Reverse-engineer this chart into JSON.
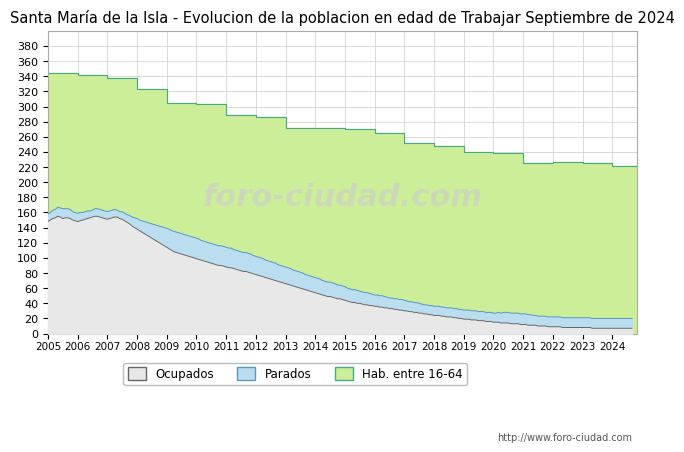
{
  "title": "Santa María de la Isla - Evolucion de la poblacion en edad de Trabajar Septiembre de 2024",
  "title_fontsize": 10.5,
  "url_text": "http://www.foro-ciudad.com",
  "watermark": "foro-ciudad.com",
  "hab_color": "#ccee99",
  "hab_edge_color": "#44aa88",
  "parados_color": "#bbddf0",
  "parados_edge_color": "#5599bb",
  "ocupados_color": "#e8e8e8",
  "ocupados_edge_color": "#666666",
  "background_color": "#ffffff",
  "grid_color": "#cccccc",
  "ylim": [
    0,
    400
  ],
  "yticks": [
    0,
    20,
    40,
    60,
    80,
    100,
    120,
    140,
    160,
    180,
    200,
    220,
    240,
    260,
    280,
    300,
    320,
    340,
    360,
    380
  ],
  "years": [
    2005,
    2006,
    2007,
    2008,
    2009,
    2010,
    2011,
    2012,
    2013,
    2014,
    2015,
    2016,
    2017,
    2018,
    2019,
    2020,
    2021,
    2022,
    2023,
    2024
  ],
  "hab_16_64": [
    344,
    341,
    338,
    323,
    304,
    303,
    289,
    286,
    271,
    271,
    270,
    265,
    252,
    248,
    240,
    238,
    225,
    227,
    225,
    222
  ],
  "afiliados_monthly": {
    "2005": [
      148,
      150,
      152,
      153,
      155,
      154,
      152,
      153,
      153,
      152,
      150,
      149
    ],
    "2006": [
      148,
      149,
      150,
      151,
      152,
      153,
      154,
      155,
      155,
      154,
      153,
      152
    ],
    "2007": [
      151,
      152,
      153,
      154,
      154,
      152,
      151,
      149,
      147,
      145,
      142,
      140
    ],
    "2008": [
      138,
      136,
      134,
      132,
      130,
      128,
      126,
      124,
      122,
      120,
      118,
      116
    ],
    "2009": [
      114,
      112,
      110,
      108,
      107,
      106,
      105,
      104,
      103,
      102,
      101,
      100
    ],
    "2010": [
      99,
      98,
      97,
      96,
      95,
      94,
      93,
      92,
      91,
      90,
      90,
      89
    ],
    "2011": [
      88,
      87,
      87,
      86,
      85,
      84,
      83,
      82,
      82,
      81,
      80,
      79
    ],
    "2012": [
      78,
      77,
      76,
      75,
      74,
      73,
      72,
      71,
      70,
      69,
      68,
      67
    ],
    "2013": [
      66,
      65,
      64,
      63,
      62,
      61,
      60,
      59,
      58,
      57,
      56,
      55
    ],
    "2014": [
      54,
      53,
      52,
      51,
      50,
      49,
      49,
      48,
      47,
      46,
      46,
      45
    ],
    "2015": [
      44,
      43,
      42,
      41,
      41,
      40,
      40,
      39,
      38,
      38,
      37,
      37
    ],
    "2016": [
      36,
      36,
      35,
      35,
      34,
      34,
      33,
      33,
      32,
      32,
      31,
      31
    ],
    "2017": [
      30,
      30,
      29,
      29,
      28,
      28,
      27,
      27,
      26,
      26,
      25,
      25
    ],
    "2018": [
      24,
      24,
      24,
      23,
      23,
      22,
      22,
      22,
      21,
      21,
      20,
      20
    ],
    "2019": [
      19,
      19,
      19,
      18,
      18,
      18,
      17,
      17,
      17,
      16,
      16,
      16
    ],
    "2020": [
      15,
      15,
      15,
      14,
      14,
      14,
      14,
      13,
      13,
      13,
      13,
      12
    ],
    "2021": [
      12,
      12,
      11,
      11,
      11,
      11,
      10,
      10,
      10,
      10,
      9,
      9
    ],
    "2022": [
      9,
      9,
      9,
      9,
      8,
      8,
      8,
      8,
      8,
      8,
      8,
      8
    ],
    "2023": [
      8,
      8,
      8,
      8,
      7,
      7,
      7,
      7,
      7,
      7,
      7,
      7
    ],
    "2024": [
      7,
      7,
      7,
      7,
      7,
      7,
      7,
      7,
      7
    ]
  },
  "parados_monthly": {
    "2005": [
      10,
      10,
      11,
      11,
      12,
      12,
      13,
      12,
      12,
      12,
      11,
      11
    ],
    "2006": [
      11,
      11,
      10,
      10,
      10,
      9,
      9,
      10,
      10,
      10,
      10,
      10
    ],
    "2007": [
      10,
      10,
      10,
      10,
      9,
      9,
      10,
      10,
      10,
      11,
      12,
      13
    ],
    "2008": [
      14,
      14,
      15,
      16,
      17,
      18,
      19,
      20,
      21,
      22,
      23,
      24
    ],
    "2009": [
      25,
      26,
      26,
      27,
      27,
      27,
      27,
      27,
      27,
      27,
      27,
      27
    ],
    "2010": [
      27,
      27,
      26,
      26,
      26,
      26,
      26,
      26,
      26,
      26,
      26,
      26
    ],
    "2011": [
      26,
      26,
      26,
      25,
      25,
      25,
      25,
      25,
      25,
      25,
      25,
      24
    ],
    "2012": [
      24,
      24,
      24,
      24,
      23,
      23,
      23,
      23,
      23,
      22,
      22,
      22
    ],
    "2013": [
      22,
      22,
      22,
      21,
      21,
      21,
      21,
      21,
      20,
      20,
      20,
      20
    ],
    "2014": [
      20,
      20,
      20,
      19,
      19,
      19,
      19,
      19,
      19,
      18,
      18,
      18
    ],
    "2015": [
      18,
      17,
      17,
      17,
      17,
      17,
      16,
      16,
      16,
      16,
      16,
      15
    ],
    "2016": [
      15,
      15,
      15,
      15,
      15,
      14,
      14,
      14,
      14,
      14,
      14,
      14
    ],
    "2017": [
      14,
      13,
      13,
      13,
      13,
      13,
      13,
      12,
      12,
      12,
      12,
      12
    ],
    "2018": [
      12,
      12,
      12,
      12,
      12,
      12,
      12,
      12,
      12,
      12,
      12,
      12
    ],
    "2019": [
      12,
      12,
      12,
      12,
      12,
      12,
      12,
      12,
      12,
      12,
      12,
      12
    ],
    "2020": [
      12,
      12,
      13,
      13,
      14,
      14,
      14,
      14,
      14,
      14,
      14,
      14
    ],
    "2021": [
      14,
      14,
      14,
      14,
      13,
      13,
      13,
      13,
      13,
      13,
      13,
      13
    ],
    "2022": [
      13,
      13,
      13,
      13,
      13,
      13,
      13,
      13,
      13,
      13,
      13,
      13
    ],
    "2023": [
      13,
      13,
      13,
      13,
      13,
      13,
      13,
      13,
      13,
      13,
      13,
      13
    ],
    "2024": [
      13,
      13,
      13,
      13,
      13,
      13,
      13,
      13,
      13
    ]
  }
}
